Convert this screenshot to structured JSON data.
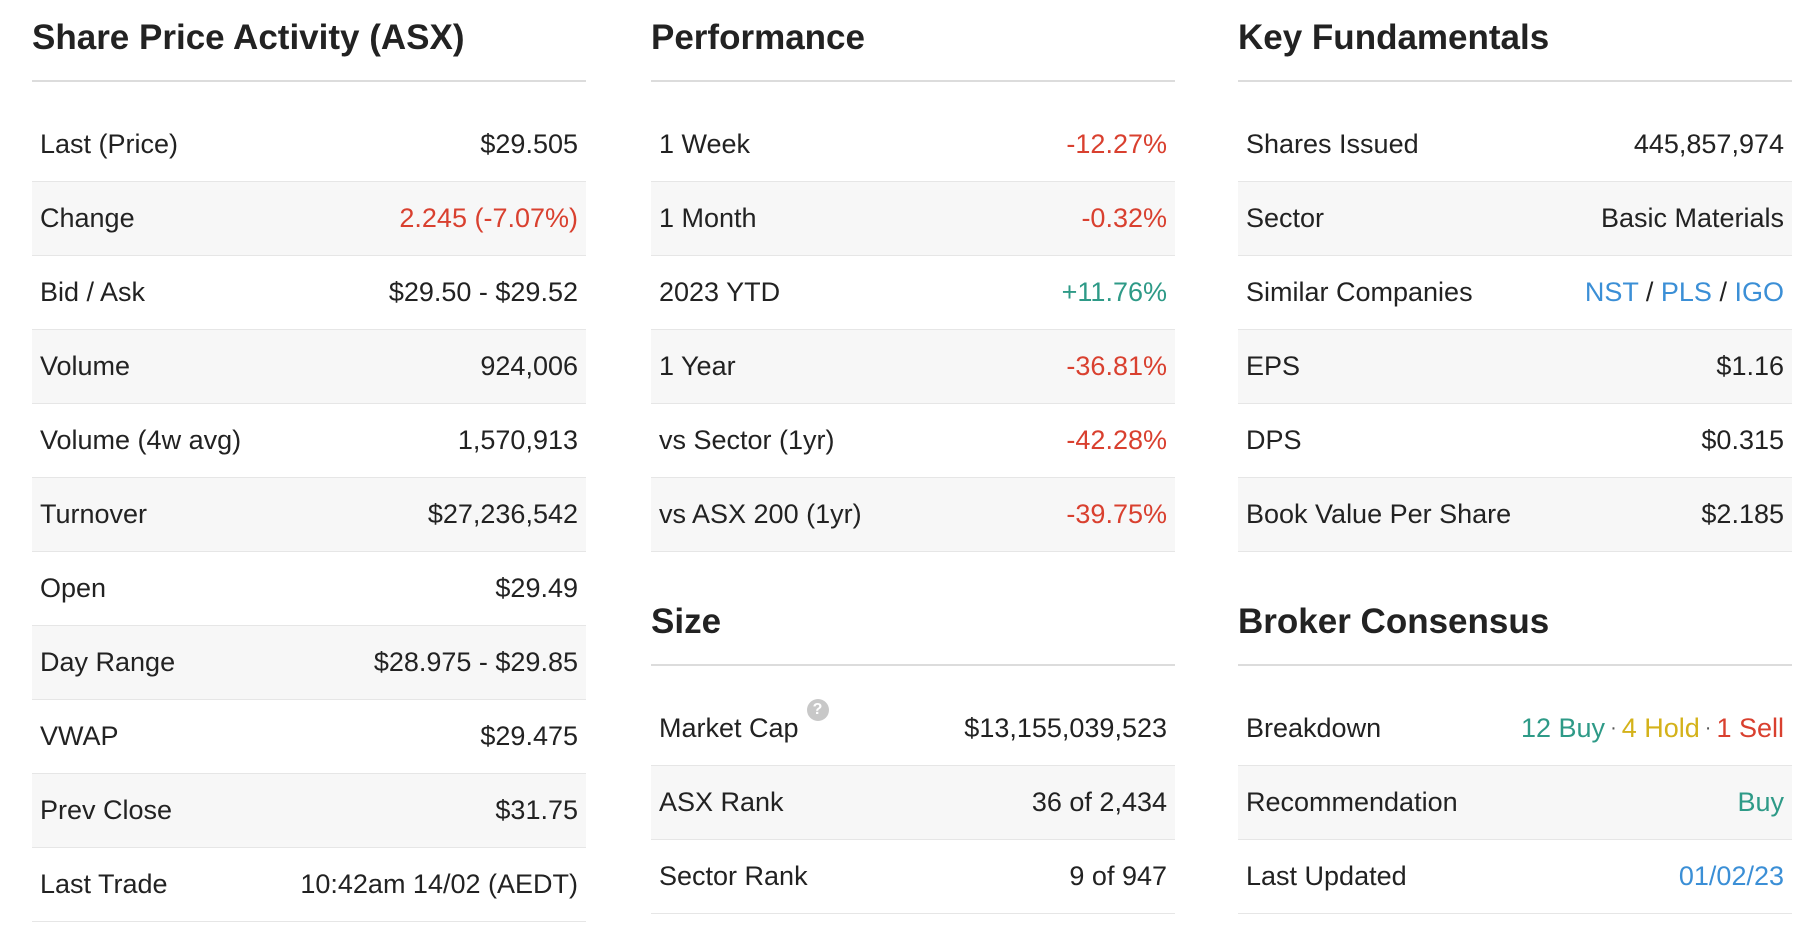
{
  "share_price": {
    "title": "Share Price Activity (ASX)",
    "rows": [
      {
        "label": "Last (Price)",
        "value": "$29.505"
      },
      {
        "label": "Change",
        "value": "2.245 (-7.07%)"
      },
      {
        "label": "Bid / Ask",
        "value": "$29.50 - $29.52"
      },
      {
        "label": "Volume",
        "value": "924,006"
      },
      {
        "label": "Volume (4w avg)",
        "value": "1,570,913"
      },
      {
        "label": "Turnover",
        "value": "$27,236,542"
      },
      {
        "label": "Open",
        "value": "$29.49"
      },
      {
        "label": "Day Range",
        "value": "$28.975 - $29.85"
      },
      {
        "label": "VWAP",
        "value": "$29.475"
      },
      {
        "label": "Prev Close",
        "value": "$31.75"
      },
      {
        "label": "Last Trade",
        "value": "10:42am 14/02 (AEDT)"
      }
    ]
  },
  "performance": {
    "title": "Performance",
    "rows": [
      {
        "label": "1 Week",
        "value": "-12.27%"
      },
      {
        "label": "1 Month",
        "value": "-0.32%"
      },
      {
        "label": "2023 YTD",
        "value": "+11.76%"
      },
      {
        "label": "1 Year",
        "value": "-36.81%"
      },
      {
        "label": "vs Sector (1yr)",
        "value": "-42.28%"
      },
      {
        "label": "vs ASX 200 (1yr)",
        "value": "-39.75%"
      }
    ]
  },
  "size": {
    "title": "Size",
    "rows": [
      {
        "label": "Market Cap",
        "value": "$13,155,039,523"
      },
      {
        "label": "ASX Rank",
        "value": "36 of 2,434"
      },
      {
        "label": "Sector Rank",
        "value": "9 of 947"
      }
    ],
    "help_icon_glyph": "?"
  },
  "fundamentals": {
    "title": "Key Fundamentals",
    "rows": [
      {
        "label": "Shares Issued",
        "value": "445,857,974"
      },
      {
        "label": "Sector",
        "value": "Basic Materials"
      },
      {
        "label": "Similar Companies",
        "companies": [
          "NST",
          "PLS",
          "IGO"
        ],
        "separator": "/"
      },
      {
        "label": "EPS",
        "value": "$1.16"
      },
      {
        "label": "DPS",
        "value": "$0.315"
      },
      {
        "label": "Book Value Per Share",
        "value": "$2.185"
      }
    ]
  },
  "broker": {
    "title": "Broker Consensus",
    "rows": [
      {
        "label": "Breakdown",
        "buy": "12 Buy",
        "hold": "4 Hold",
        "sell": "1 Sell",
        "separator": "·"
      },
      {
        "label": "Recommendation",
        "value": "Buy"
      },
      {
        "label": "Last Updated",
        "value": "01/02/23"
      }
    ]
  },
  "colors": {
    "negative": "#d9402f",
    "positive": "#2e9a87",
    "link": "#3b8fd6",
    "hold": "#d4b21a"
  }
}
